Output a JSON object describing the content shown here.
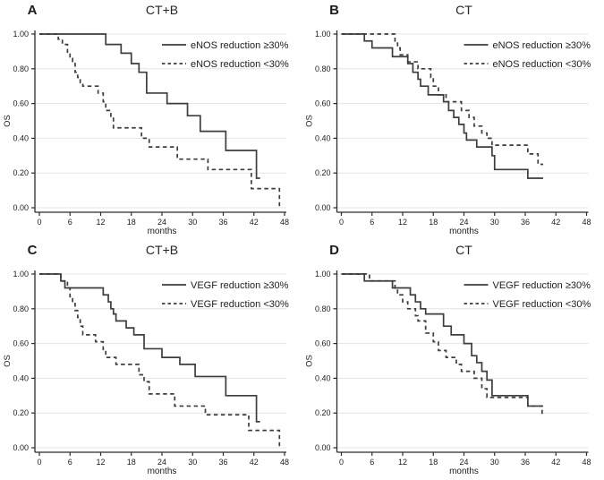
{
  "figure": {
    "background": "#ffffff",
    "curve_color": "#3d3d3d",
    "grid_color": "#e4e4e4",
    "axis_color": "#2b2b2b",
    "text_color": "#1c1c1c",
    "title_color": "#262626"
  },
  "chart_data": [
    {
      "type": "line",
      "chart_kind": "kaplan-meier-step",
      "panel_letter": "A",
      "title": "CT+B",
      "xlabel": "months",
      "ylabel": "OS",
      "xlim": [
        0,
        48
      ],
      "ylim": [
        0,
        1.0
      ],
      "xticks": [
        0,
        6,
        12,
        18,
        24,
        30,
        36,
        42,
        48
      ],
      "yticks": [
        0,
        0.2,
        0.4,
        0.6,
        0.8,
        1.0
      ],
      "ytick_labels": [
        "0.00",
        "0.20",
        "0.40",
        "0.60",
        "0.80",
        "1.00"
      ],
      "grid": "horizontal",
      "legend_position": "top-right",
      "series": [
        {
          "name": "eNOS reduction ≥30%",
          "line_style": "solid",
          "steps": [
            [
              0,
              1.0
            ],
            [
              13,
              0.94
            ],
            [
              16,
              0.89
            ],
            [
              18,
              0.83
            ],
            [
              19.5,
              0.78
            ],
            [
              21,
              0.66
            ],
            [
              25,
              0.6
            ],
            [
              29,
              0.53
            ],
            [
              31.5,
              0.44
            ],
            [
              36.5,
              0.33
            ],
            [
              42.5,
              0.17
            ]
          ],
          "end_x": 43.2
        },
        {
          "name": "eNOS reduction <30%",
          "line_style": "dashed",
          "steps": [
            [
              0,
              1.0
            ],
            [
              3.7,
              0.97
            ],
            [
              4.5,
              0.94
            ],
            [
              5.5,
              0.89
            ],
            [
              6,
              0.86
            ],
            [
              6.5,
              0.83
            ],
            [
              7,
              0.78
            ],
            [
              7.5,
              0.75
            ],
            [
              8,
              0.72
            ],
            [
              8.5,
              0.7
            ],
            [
              11.5,
              0.66
            ],
            [
              12.5,
              0.61
            ],
            [
              13,
              0.56
            ],
            [
              14,
              0.52
            ],
            [
              14.5,
              0.46
            ],
            [
              20,
              0.4
            ],
            [
              21.5,
              0.35
            ],
            [
              27,
              0.28
            ],
            [
              33,
              0.22
            ],
            [
              41.5,
              0.11
            ],
            [
              47,
              0.0
            ]
          ],
          "end_x": 47.3
        }
      ]
    },
    {
      "type": "line",
      "chart_kind": "kaplan-meier-step",
      "panel_letter": "B",
      "title": "CT",
      "xlabel": "months",
      "ylabel": "OS",
      "xlim": [
        0,
        48
      ],
      "ylim": [
        0,
        1.0
      ],
      "xticks": [
        0,
        6,
        12,
        18,
        24,
        30,
        36,
        42,
        48
      ],
      "yticks": [
        0,
        0.2,
        0.4,
        0.6,
        0.8,
        1.0
      ],
      "ytick_labels": [
        "0.00",
        "0.20",
        "0.40",
        "0.60",
        "0.80",
        "1.00"
      ],
      "grid": "horizontal",
      "legend_position": "top-right",
      "series": [
        {
          "name": "eNOS reduction ≥30%",
          "line_style": "solid",
          "steps": [
            [
              0,
              1.0
            ],
            [
              4.5,
              0.96
            ],
            [
              6,
              0.92
            ],
            [
              10,
              0.87
            ],
            [
              13,
              0.83
            ],
            [
              14,
              0.78
            ],
            [
              15,
              0.74
            ],
            [
              15.5,
              0.7
            ],
            [
              17,
              0.65
            ],
            [
              20,
              0.61
            ],
            [
              21,
              0.56
            ],
            [
              22,
              0.52
            ],
            [
              23,
              0.48
            ],
            [
              24,
              0.43
            ],
            [
              24.5,
              0.39
            ],
            [
              26.5,
              0.35
            ],
            [
              29.5,
              0.3
            ],
            [
              30,
              0.22
            ],
            [
              36.5,
              0.17
            ]
          ],
          "end_x": 39.5
        },
        {
          "name": "eNOS reduction <30%",
          "line_style": "dashed",
          "steps": [
            [
              0,
              1.0
            ],
            [
              10.5,
              0.96
            ],
            [
              11,
              0.92
            ],
            [
              11.5,
              0.88
            ],
            [
              13,
              0.84
            ],
            [
              15,
              0.8
            ],
            [
              17.5,
              0.75
            ],
            [
              18,
              0.7
            ],
            [
              19,
              0.65
            ],
            [
              20.5,
              0.61
            ],
            [
              23.5,
              0.56
            ],
            [
              25,
              0.52
            ],
            [
              26,
              0.47
            ],
            [
              27.5,
              0.43
            ],
            [
              28.5,
              0.4
            ],
            [
              29.5,
              0.36
            ],
            [
              36.5,
              0.31
            ],
            [
              38.5,
              0.25
            ]
          ],
          "end_x": 39.5
        }
      ]
    },
    {
      "type": "line",
      "chart_kind": "kaplan-meier-step",
      "panel_letter": "C",
      "title": "CT+B",
      "xlabel": "months",
      "ylabel": "OS",
      "xlim": [
        0,
        48
      ],
      "ylim": [
        0,
        1.0
      ],
      "xticks": [
        0,
        6,
        12,
        18,
        24,
        30,
        36,
        42,
        48
      ],
      "yticks": [
        0,
        0.2,
        0.4,
        0.6,
        0.8,
        1.0
      ],
      "ytick_labels": [
        "0.00",
        "0.20",
        "0.40",
        "0.60",
        "0.80",
        "1.00"
      ],
      "grid": "horizontal",
      "legend_position": "top-right",
      "series": [
        {
          "name": "VEGF reduction ≥30%",
          "line_style": "solid",
          "steps": [
            [
              0,
              1.0
            ],
            [
              4.2,
              0.96
            ],
            [
              5,
              0.92
            ],
            [
              12.5,
              0.88
            ],
            [
              13.5,
              0.84
            ],
            [
              14,
              0.8
            ],
            [
              14.5,
              0.77
            ],
            [
              15,
              0.73
            ],
            [
              17,
              0.69
            ],
            [
              18.5,
              0.65
            ],
            [
              20.5,
              0.57
            ],
            [
              24,
              0.52
            ],
            [
              27.5,
              0.48
            ],
            [
              30.5,
              0.41
            ],
            [
              36.5,
              0.3
            ],
            [
              42.5,
              0.15
            ]
          ],
          "end_x": 43.2
        },
        {
          "name": "VEGF reduction <30%",
          "line_style": "dashed",
          "steps": [
            [
              0,
              1.0
            ],
            [
              4.2,
              0.96
            ],
            [
              5.5,
              0.92
            ],
            [
              6,
              0.87
            ],
            [
              6.5,
              0.83
            ],
            [
              7,
              0.79
            ],
            [
              7.5,
              0.75
            ],
            [
              8,
              0.7
            ],
            [
              8.5,
              0.65
            ],
            [
              11,
              0.61
            ],
            [
              12.5,
              0.56
            ],
            [
              13,
              0.52
            ],
            [
              15,
              0.48
            ],
            [
              19.5,
              0.42
            ],
            [
              20.5,
              0.38
            ],
            [
              21.5,
              0.31
            ],
            [
              26.5,
              0.24
            ],
            [
              32.5,
              0.19
            ],
            [
              41,
              0.1
            ],
            [
              47,
              0.0
            ]
          ],
          "end_x": 47.3
        }
      ]
    },
    {
      "type": "line",
      "chart_kind": "kaplan-meier-step",
      "panel_letter": "D",
      "title": "CT",
      "xlabel": "months",
      "ylabel": "OS",
      "xlim": [
        0,
        48
      ],
      "ylim": [
        0,
        1.0
      ],
      "xticks": [
        0,
        6,
        12,
        18,
        24,
        30,
        36,
        42,
        48
      ],
      "yticks": [
        0,
        0.2,
        0.4,
        0.6,
        0.8,
        1.0
      ],
      "ytick_labels": [
        "0.00",
        "0.20",
        "0.40",
        "0.60",
        "0.80",
        "1.00"
      ],
      "grid": "horizontal",
      "legend_position": "top-right",
      "series": [
        {
          "name": "VEGF reduction ≥30%",
          "line_style": "solid",
          "steps": [
            [
              0,
              1.0
            ],
            [
              4.5,
              0.96
            ],
            [
              10,
              0.92
            ],
            [
              13.5,
              0.88
            ],
            [
              14.5,
              0.84
            ],
            [
              15.5,
              0.8
            ],
            [
              16.5,
              0.77
            ],
            [
              20,
              0.7
            ],
            [
              21.5,
              0.65
            ],
            [
              24,
              0.6
            ],
            [
              25.5,
              0.53
            ],
            [
              26.5,
              0.49
            ],
            [
              27.5,
              0.44
            ],
            [
              28.5,
              0.39
            ],
            [
              29.5,
              0.3
            ],
            [
              36.5,
              0.24
            ]
          ],
          "end_x": 39.5
        },
        {
          "name": "VEGF reduction <30%",
          "line_style": "dashed",
          "steps": [
            [
              0,
              1.0
            ],
            [
              5.5,
              0.96
            ],
            [
              10.5,
              0.92
            ],
            [
              11,
              0.88
            ],
            [
              12,
              0.84
            ],
            [
              13,
              0.8
            ],
            [
              14.5,
              0.76
            ],
            [
              15,
              0.73
            ],
            [
              16.5,
              0.66
            ],
            [
              18,
              0.61
            ],
            [
              19,
              0.56
            ],
            [
              20.5,
              0.52
            ],
            [
              22.5,
              0.48
            ],
            [
              23.5,
              0.44
            ],
            [
              26,
              0.4
            ],
            [
              27.5,
              0.34
            ],
            [
              28.5,
              0.29
            ],
            [
              36.5,
              0.24
            ],
            [
              39.3,
              0.19
            ]
          ],
          "end_x": 39.6
        }
      ]
    }
  ]
}
